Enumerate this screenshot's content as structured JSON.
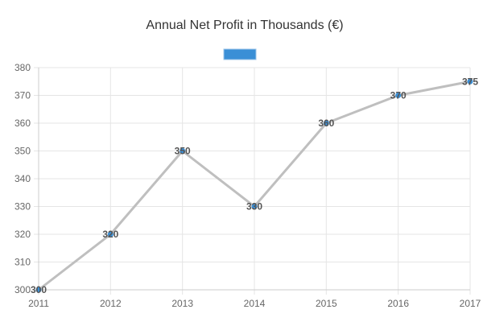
{
  "chart_data": {
    "type": "line",
    "title": "Annual Net Profit in Thousands (€)",
    "categories": [
      "2011",
      "2012",
      "2013",
      "2014",
      "2015",
      "2016",
      "2017"
    ],
    "series": [
      {
        "values": [
          300,
          320,
          350,
          330,
          360,
          370,
          375
        ],
        "line_color": "#bfbfbf",
        "point_color": "#3a8fd6"
      }
    ],
    "legend": {
      "position": "top",
      "swatch_color": "#3a8fd6"
    },
    "ylim": [
      300,
      380
    ],
    "yticks": [
      300,
      310,
      320,
      330,
      340,
      350,
      360,
      370,
      380
    ],
    "grid": true,
    "data_labels": true
  }
}
